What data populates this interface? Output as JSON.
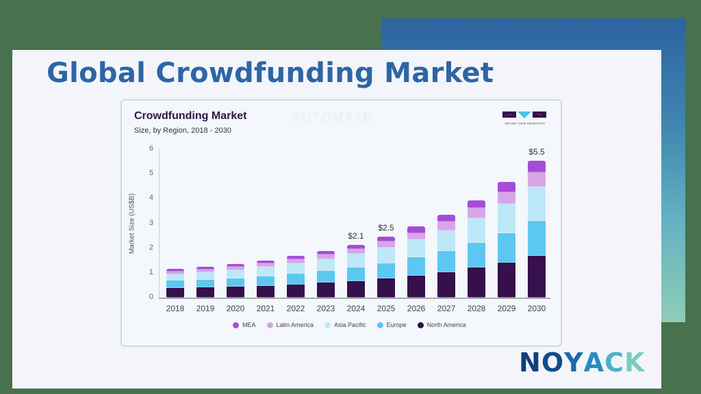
{
  "page": {
    "title": "Global Crowdfunding Market",
    "brand": {
      "letters": [
        "N",
        "O",
        "Y",
        "A",
        "C",
        "K"
      ],
      "colors": [
        "#0E3F7E",
        "#114C8E",
        "#1A6BA8",
        "#2A8CC0",
        "#4BB0CE",
        "#7CCBC3"
      ]
    }
  },
  "card": {
    "title": "Crowdfunding Market",
    "subtitle": "Size, by Region, 2018 - 2030",
    "watermark": "AUTOMATE",
    "logo_text": "GRAND VIEW RESEARCH"
  },
  "chart_data": {
    "type": "bar",
    "stacked": true,
    "title": "Crowdfunding Market",
    "subtitle": "Size, by Region, 2018 - 2030",
    "xlabel": "",
    "ylabel": "Market Size (US$B)",
    "ylim": [
      0,
      6
    ],
    "yticks": [
      0,
      1,
      2,
      3,
      4,
      5,
      6
    ],
    "grid": false,
    "legend_position": "bottom",
    "categories": [
      "2018",
      "2019",
      "2020",
      "2021",
      "2022",
      "2023",
      "2024",
      "2025",
      "2026",
      "2027",
      "2028",
      "2029",
      "2030"
    ],
    "series": [
      {
        "name": "North America",
        "color": "#35104A",
        "values": [
          0.39,
          0.42,
          0.44,
          0.47,
          0.53,
          0.61,
          0.66,
          0.77,
          0.88,
          1.02,
          1.22,
          1.41,
          1.69
        ]
      },
      {
        "name": "Europe",
        "color": "#5CC8F2",
        "values": [
          0.3,
          0.3,
          0.33,
          0.39,
          0.44,
          0.47,
          0.55,
          0.61,
          0.75,
          0.86,
          1.0,
          1.19,
          1.41
        ]
      },
      {
        "name": "Asia Pacific",
        "color": "#BDE8F7",
        "values": [
          0.25,
          0.3,
          0.33,
          0.39,
          0.41,
          0.47,
          0.55,
          0.64,
          0.72,
          0.83,
          1.0,
          1.19,
          1.38
        ]
      },
      {
        "name": "Latin America",
        "color": "#D6A6E8",
        "values": [
          0.11,
          0.11,
          0.14,
          0.14,
          0.17,
          0.19,
          0.19,
          0.25,
          0.25,
          0.36,
          0.41,
          0.47,
          0.58
        ]
      },
      {
        "name": "MEA",
        "color": "#A54DD6",
        "values": [
          0.11,
          0.11,
          0.11,
          0.11,
          0.14,
          0.14,
          0.19,
          0.19,
          0.28,
          0.28,
          0.3,
          0.41,
          0.47
        ]
      }
    ],
    "annotations": [
      {
        "category": "2024",
        "text": "$2.1"
      },
      {
        "category": "2025",
        "text": "$2.5"
      },
      {
        "category": "2030",
        "text": "$5.5"
      }
    ],
    "legend": [
      "MEA",
      "Latin America",
      "Asia Pacific",
      "Europe",
      "North America"
    ]
  }
}
